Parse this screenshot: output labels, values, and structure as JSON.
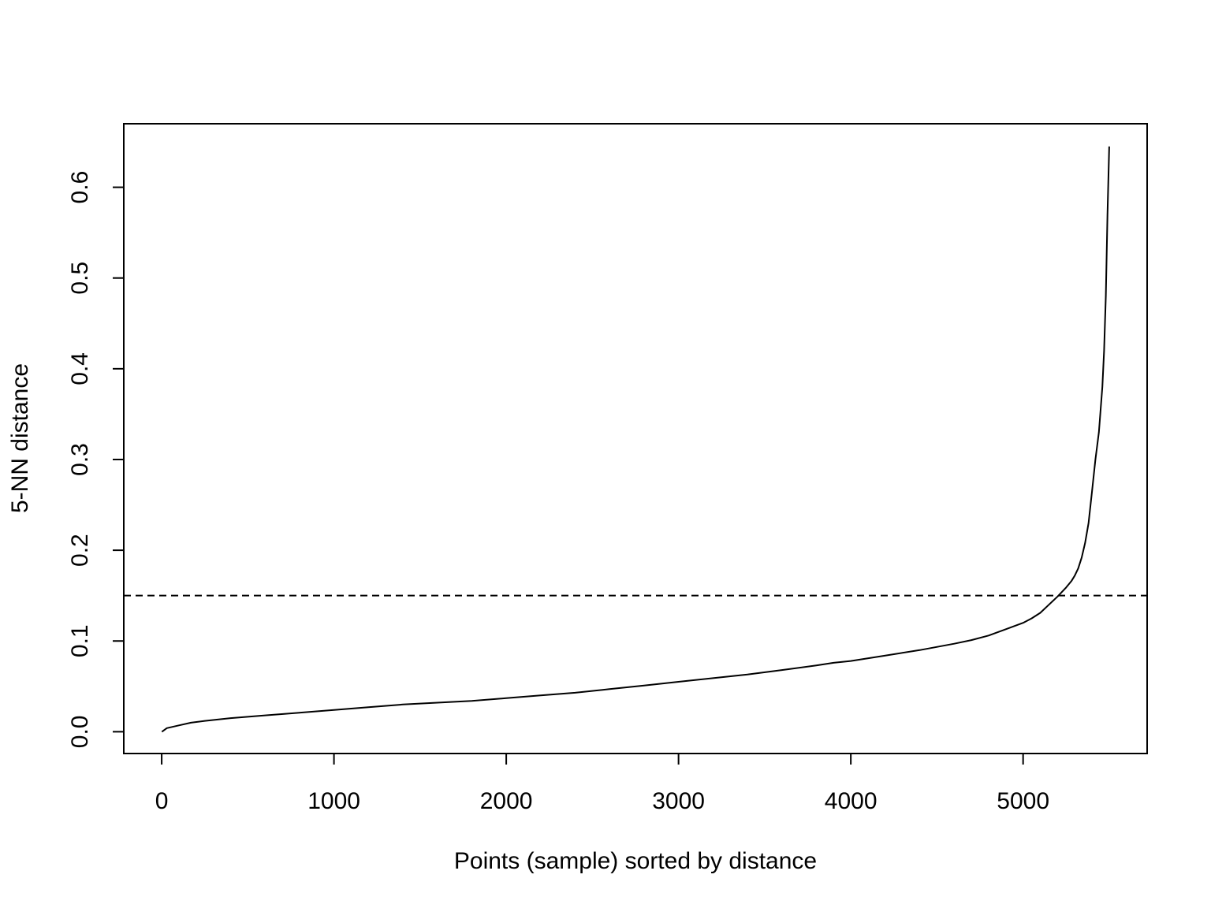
{
  "chart_data": {
    "type": "line",
    "title": "",
    "xlabel": "Points (sample) sorted by distance",
    "ylabel": "5-NN distance",
    "xlim": [
      -220,
      5720
    ],
    "ylim": [
      -0.024,
      0.67
    ],
    "x_ticks": [
      0,
      1000,
      2000,
      3000,
      4000,
      5000
    ],
    "x_tick_labels": [
      "0",
      "1000",
      "2000",
      "3000",
      "4000",
      "5000"
    ],
    "y_ticks": [
      0.0,
      0.1,
      0.2,
      0.3,
      0.4,
      0.5,
      0.6
    ],
    "y_tick_labels": [
      "0.0",
      "0.1",
      "0.2",
      "0.3",
      "0.4",
      "0.5",
      "0.6"
    ],
    "grid": false,
    "legend": "none",
    "series": [
      {
        "x": [
          1,
          30,
          100,
          170,
          250,
          400,
          600,
          800,
          1000,
          1200,
          1400,
          1600,
          1800,
          2000,
          2200,
          2400,
          2600,
          2800,
          3000,
          3200,
          3400,
          3600,
          3800,
          3900,
          4000,
          4200,
          4400,
          4600,
          4700,
          4800,
          4900,
          5000,
          5050,
          5100,
          5150,
          5200,
          5250,
          5280,
          5300,
          5320,
          5340,
          5360,
          5380,
          5400,
          5420,
          5440,
          5460,
          5470,
          5480,
          5490,
          5500
        ],
        "y": [
          0.0,
          0.004,
          0.007,
          0.01,
          0.012,
          0.015,
          0.018,
          0.021,
          0.024,
          0.027,
          0.03,
          0.032,
          0.034,
          0.037,
          0.04,
          0.043,
          0.047,
          0.051,
          0.055,
          0.059,
          0.063,
          0.068,
          0.073,
          0.076,
          0.078,
          0.084,
          0.09,
          0.097,
          0.101,
          0.106,
          0.113,
          0.12,
          0.125,
          0.131,
          0.14,
          0.149,
          0.159,
          0.166,
          0.172,
          0.18,
          0.192,
          0.208,
          0.23,
          0.265,
          0.3,
          0.33,
          0.38,
          0.42,
          0.48,
          0.57,
          0.645
        ]
      }
    ],
    "reference_lines": [
      {
        "orientation": "horizontal",
        "y": 0.15,
        "style": "dashed"
      }
    ]
  }
}
